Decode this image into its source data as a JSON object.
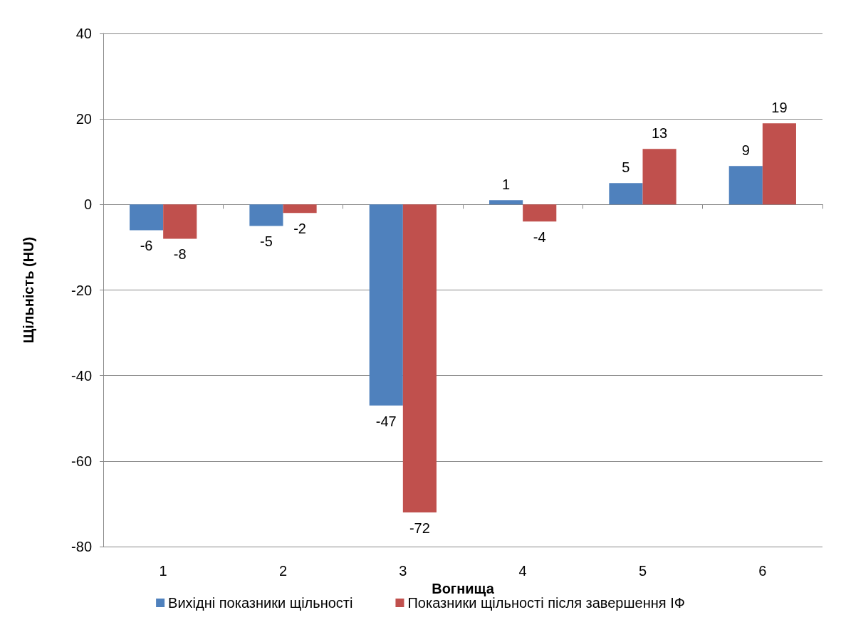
{
  "chart_data": {
    "type": "bar",
    "xlabel": "Вогнища",
    "ylabel": "Щільність (HU)",
    "categories": [
      "1",
      "2",
      "3",
      "4",
      "5",
      "6"
    ],
    "series": [
      {
        "name": "Вихідні показники щільності",
        "color": "#4f81bd",
        "values": [
          -6,
          -5,
          -47,
          1,
          5,
          9
        ]
      },
      {
        "name": "Показники щільності після завершення ІФ",
        "color": "#c0504d",
        "values": [
          -8,
          -2,
          -72,
          -4,
          13,
          19
        ]
      }
    ],
    "ylim": [
      -80,
      40
    ],
    "yticks": [
      -80,
      -60,
      -40,
      -20,
      0,
      20,
      40
    ],
    "grid": "y",
    "legend": "bottom",
    "data_labels": true
  }
}
